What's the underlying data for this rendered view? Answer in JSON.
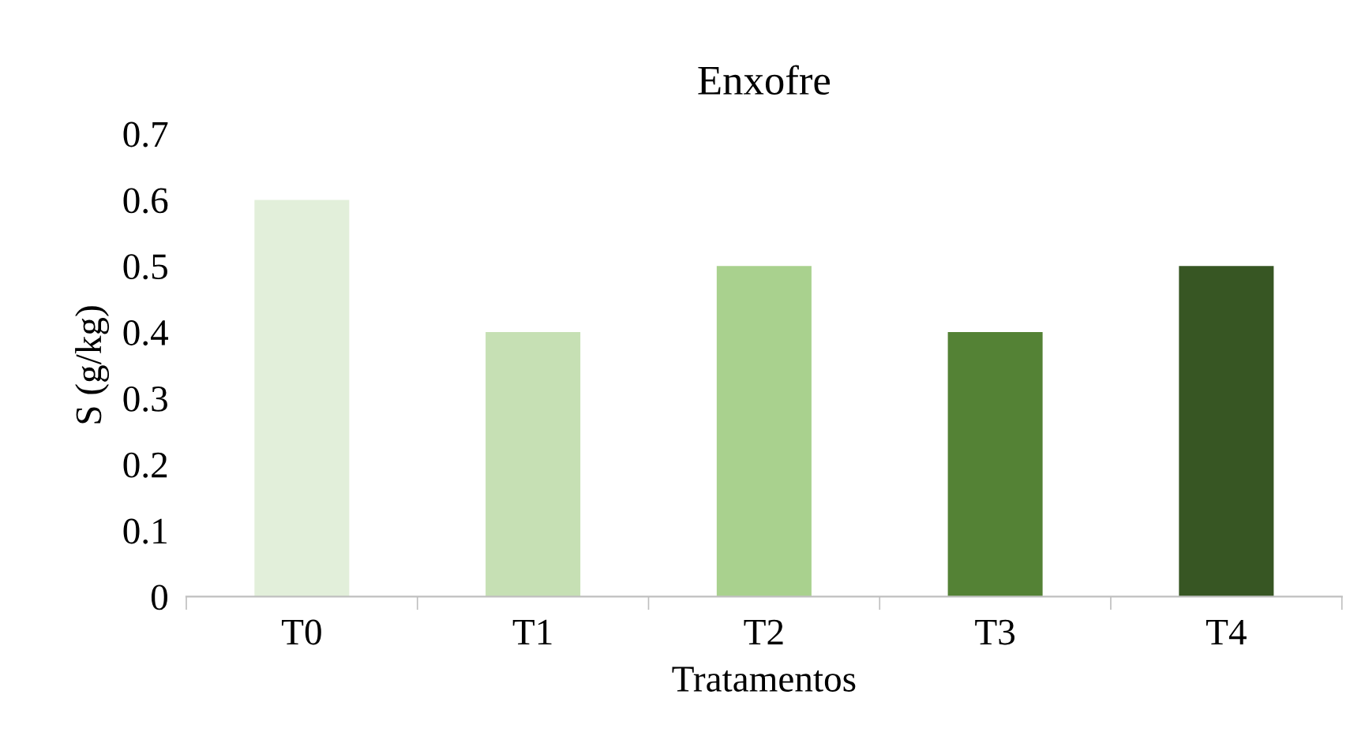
{
  "chart_data": {
    "type": "bar",
    "title": "Enxofre",
    "xlabel": "Tratamentos",
    "ylabel": "S (g/kg)",
    "categories": [
      "T0",
      "T1",
      "T2",
      "T3",
      "T4"
    ],
    "values": [
      0.6,
      0.4,
      0.5,
      0.4,
      0.5
    ],
    "colors": [
      "#e2efda",
      "#c6e0b4",
      "#a9d18e",
      "#548235",
      "#375623"
    ],
    "ylim": [
      0,
      0.7
    ],
    "yticks": [
      0,
      0.1,
      0.2,
      0.3,
      0.4,
      0.5,
      0.6,
      0.7
    ],
    "grid": false,
    "legend": false
  }
}
